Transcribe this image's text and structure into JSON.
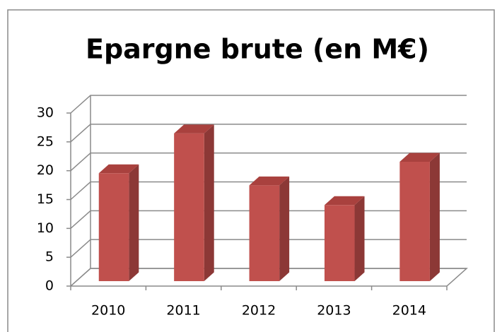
{
  "chart_data": {
    "type": "bar",
    "title": "Epargne brute (en M€)",
    "categories": [
      "2010",
      "2011",
      "2012",
      "2013",
      "2014"
    ],
    "values": [
      18.7,
      25.6,
      16.6,
      13.2,
      20.7
    ],
    "color": "#c0504d",
    "ylim": [
      0,
      30
    ],
    "yticks": [
      0,
      5,
      10,
      15,
      20,
      25,
      30
    ],
    "grid": true
  }
}
